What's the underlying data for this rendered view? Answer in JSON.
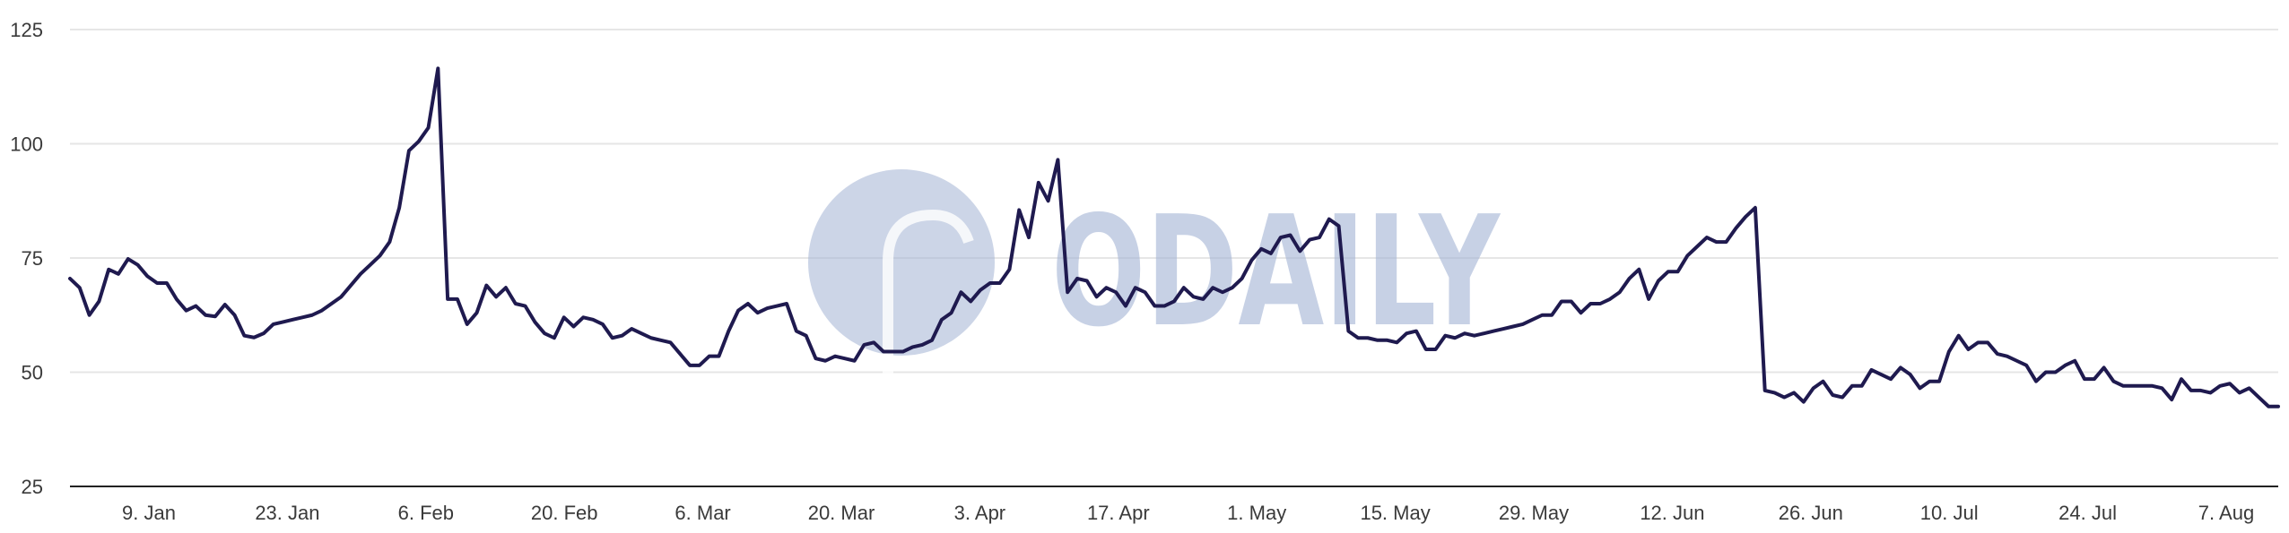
{
  "chart_data": {
    "type": "line",
    "ylim": [
      25,
      125
    ],
    "yticks": [
      25,
      50,
      75,
      100,
      125
    ],
    "y_tick_labels": [
      "25",
      "50",
      "75",
      "100",
      "125"
    ],
    "x_tick_labels": [
      "9. Jan",
      "23. Jan",
      "6. Feb",
      "20. Feb",
      "6. Mar",
      "20. Mar",
      "3. Apr",
      "17. Apr",
      "1. May",
      "15. May",
      "29. May",
      "12. Jun",
      "26. Jun",
      "10. Jul",
      "24. Jul",
      "7. Aug"
    ],
    "grid": true,
    "line_color": "#1f1a4f",
    "watermark_text": "ODAILY",
    "watermark_color": "#a3b3d4",
    "series": [
      {
        "name": "",
        "values": [
          70.5,
          68.5,
          62.5,
          65.5,
          72.5,
          71.5,
          74.8,
          73.5,
          71,
          69.5,
          69.5,
          66,
          63.5,
          64.5,
          62.5,
          62.2,
          64.8,
          62.5,
          58,
          57.6,
          58.5,
          60.5,
          61,
          61.5,
          62,
          62.5,
          63.5,
          65,
          66.5,
          69,
          71.5,
          73.5,
          75.5,
          78.5,
          86,
          98.5,
          100.5,
          103.5,
          116.5,
          66,
          66,
          60.5,
          63,
          69,
          66.5,
          68.5,
          65,
          64.5,
          61,
          58.5,
          57.5,
          62,
          60,
          62,
          61.5,
          60.5,
          57.5,
          58,
          59.5,
          58.5,
          57.5,
          57,
          56.5,
          54,
          51.5,
          51.5,
          53.5,
          53.5,
          59,
          63.5,
          65,
          63,
          64,
          64.5,
          65,
          59,
          58,
          53,
          52.5,
          53.5,
          53,
          52.5,
          56,
          56.5,
          54.5,
          54.5,
          54.5,
          55.5,
          56,
          57,
          61.5,
          63,
          67.5,
          65.5,
          68,
          69.5,
          69.5,
          72.5,
          85.5,
          79.5,
          91.5,
          87.5,
          96.5,
          67.5,
          70.5,
          70,
          66.5,
          68.5,
          67.5,
          64.5,
          68.5,
          67.5,
          64.5,
          64.5,
          65.5,
          68.5,
          66.5,
          66,
          68.5,
          67.5,
          68.5,
          70.5,
          74.5,
          77,
          76,
          79.5,
          80,
          76.5,
          79,
          79.5,
          83.5,
          82,
          59,
          57.5,
          57.5,
          57,
          57,
          56.5,
          58.5,
          59,
          55,
          55,
          58,
          57.5,
          58.5,
          58,
          58.5,
          59,
          59.5,
          60,
          60.5,
          61.5,
          62.5,
          62.5,
          65.5,
          65.5,
          63,
          65,
          65,
          66,
          67.5,
          70.5,
          72.5,
          66,
          70,
          72,
          72,
          75.5,
          77.5,
          79.5,
          78.5,
          78.5,
          81.5,
          84,
          86,
          46,
          45.5,
          44.5,
          45.5,
          43.5,
          46.5,
          48,
          45,
          44.5,
          47,
          47,
          50.5,
          49.5,
          48.5,
          51,
          49.5,
          46.5,
          48,
          48,
          54.5,
          58,
          55,
          56.5,
          56.5,
          54,
          53.5,
          52.5,
          51.5,
          48,
          50,
          50,
          51.5,
          52.5,
          48.5,
          48.5,
          51,
          48,
          47,
          47,
          47,
          47,
          46.5,
          44,
          48.5,
          46,
          46,
          45.5,
          47,
          47.5,
          45.5,
          46.5,
          44.5,
          42.5,
          42.5
        ]
      }
    ]
  }
}
